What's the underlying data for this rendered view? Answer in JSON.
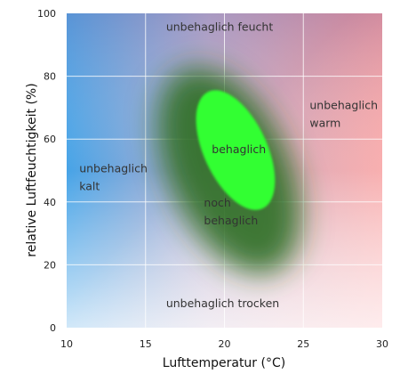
{
  "chart_data": {
    "type": "area",
    "title": "",
    "xlabel": "Lufttemperatur (°C)",
    "ylabel": "relative Luftfeuchtigkeit (%)",
    "xlim": [
      10,
      30
    ],
    "ylim": [
      0,
      100
    ],
    "xticks": [
      "10",
      "15",
      "20",
      "25",
      "30"
    ],
    "yticks": [
      "0",
      "20",
      "40",
      "60",
      "80",
      "100"
    ],
    "grid": true,
    "colors": {
      "cold": "#3d9fe6",
      "warm": "#f58a8a",
      "humid": "#8a7fb8",
      "dry": "#f3f1f7",
      "comfortable": "#33ff33",
      "still_comfortable": "#2c6e22"
    },
    "regions": [
      {
        "label": "behaglich",
        "shape": "ellipse",
        "center": [
          20.7,
          56.5
        ],
        "radius_x": 2.0,
        "radius_y": 20.5,
        "rotation_deg": 25
      },
      {
        "label": "noch behaglich",
        "shape": "ellipse",
        "center": [
          20.3,
          50
        ],
        "radius_x": 3.8,
        "radius_y": 35,
        "rotation_deg": 25
      }
    ],
    "annotations": [
      {
        "lines": [
          "unbehaglich feucht"
        ],
        "x": 16.3,
        "y": 94.5
      },
      {
        "lines": [
          "unbehaglich",
          "warm"
        ],
        "x": 25.4,
        "y": 69.5
      },
      {
        "lines": [
          "unbehaglich",
          "kalt"
        ],
        "x": 10.8,
        "y": 49.5
      },
      {
        "lines": [
          "behaglich"
        ],
        "x": 19.2,
        "y": 55.5
      },
      {
        "lines": [
          "noch",
          "behaglich"
        ],
        "x": 18.7,
        "y": 38.5
      },
      {
        "lines": [
          "unbehaglich trocken"
        ],
        "x": 16.3,
        "y": 6.5
      }
    ]
  }
}
